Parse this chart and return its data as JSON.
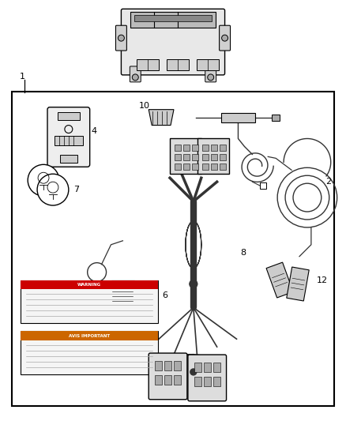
{
  "bg_color": "#ffffff",
  "line_color": "#000000",
  "part_color": "#333333",
  "gray_light": "#cccccc",
  "gray_mid": "#999999",
  "gray_dark": "#555555"
}
